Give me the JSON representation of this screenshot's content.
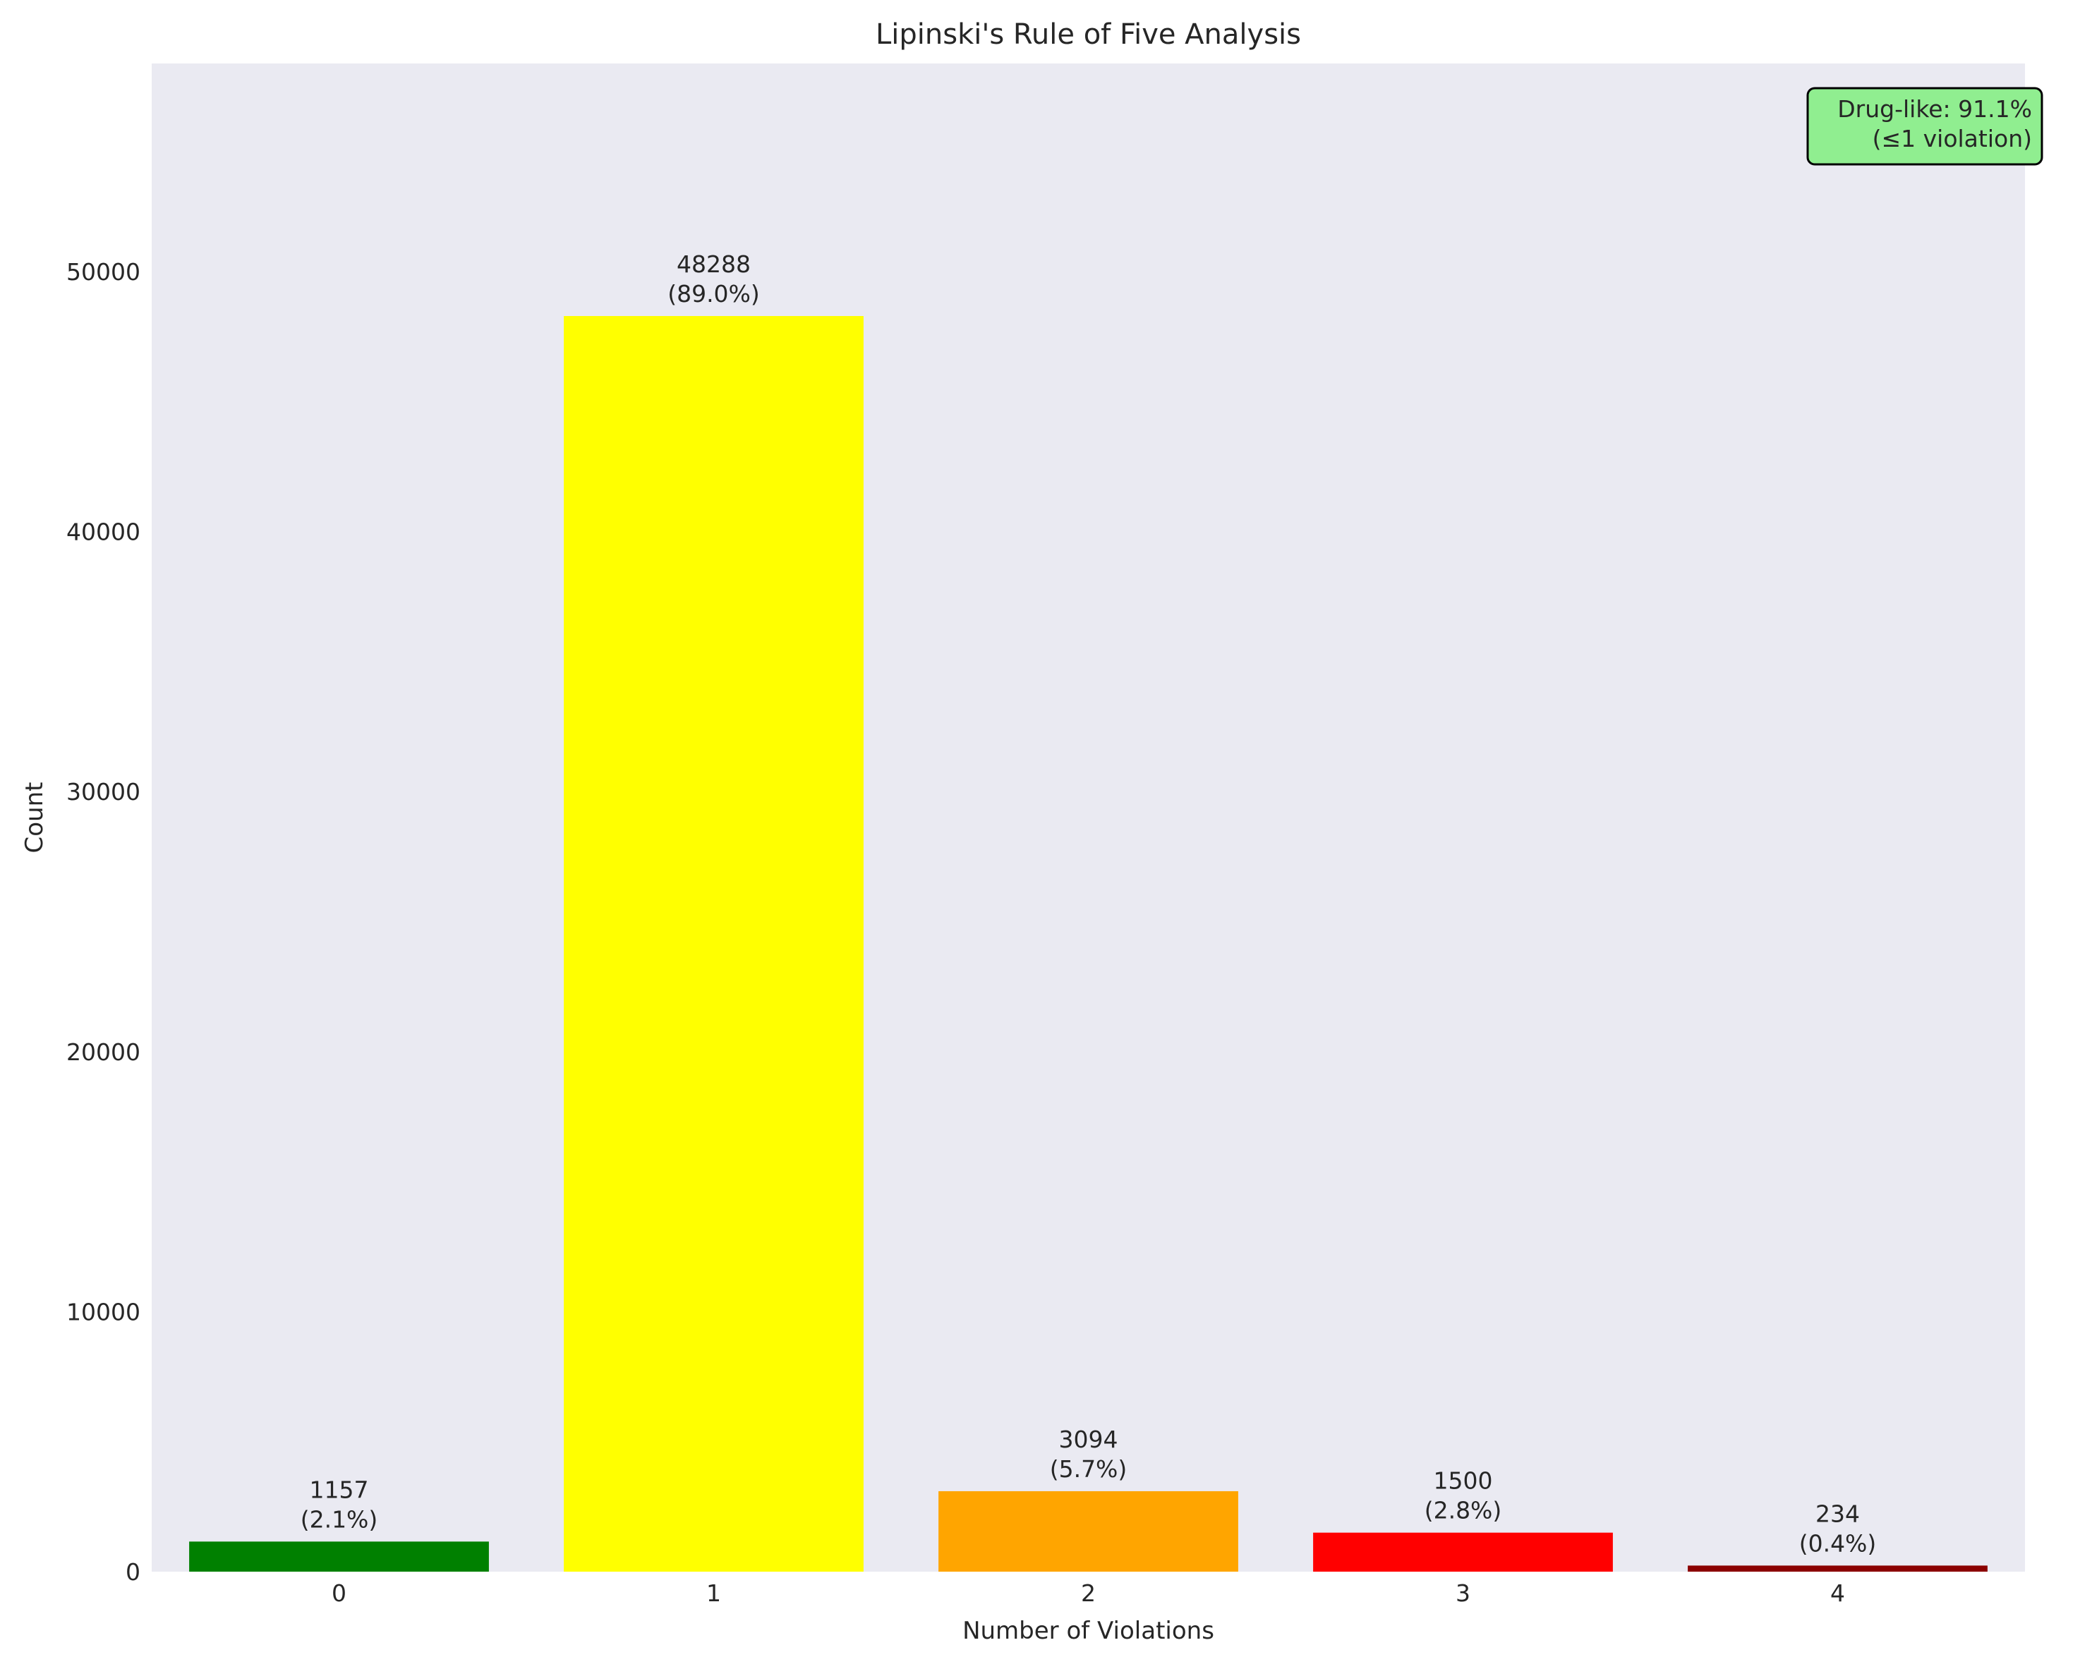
{
  "chart_data": {
    "type": "bar",
    "title": "Lipinski's Rule of Five Analysis",
    "xlabel": "Number of Violations",
    "ylabel": "Count",
    "categories": [
      "0",
      "1",
      "2",
      "3",
      "4"
    ],
    "values": [
      1157,
      48288,
      3094,
      1500,
      234
    ],
    "percent_labels": [
      "(2.1%)",
      "(89.0%)",
      "(5.7%)",
      "(2.8%)",
      "(0.4%)"
    ],
    "bar_colors": [
      "#008000",
      "#ffff00",
      "#ffa500",
      "#ff0000",
      "#8b0000"
    ],
    "ylim": [
      0,
      58000
    ],
    "yticks": [
      0,
      10000,
      20000,
      30000,
      40000,
      50000
    ],
    "grid": false,
    "background_color": "#eaeaf2",
    "annotation": {
      "line1": "Drug-like: 91.1%",
      "line2": "(≤1 violation)",
      "position": "top-right",
      "box_color": "#90ee90"
    }
  }
}
